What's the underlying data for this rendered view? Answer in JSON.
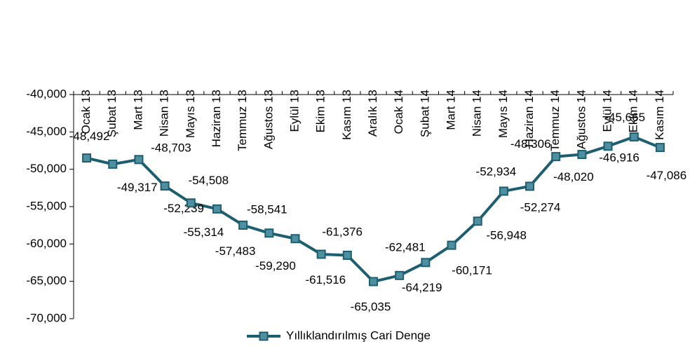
{
  "chart_data": {
    "type": "line",
    "categories": [
      "Ocak 13",
      "Şubat 13",
      "Mart 13",
      "Nisan 13",
      "Mayıs 13",
      "Haziran 13",
      "Temmuz 13",
      "Ağustos 13",
      "Eylül 13",
      "Ekim 13",
      "Kasım 13",
      "Aralık 13",
      "Ocak 14",
      "Şubat 14",
      "Mart 14",
      "Nisan 14",
      "Mayıs 14",
      "Haziran 14",
      "Temmuz 14",
      "Ağustos 14",
      "Eylül 14",
      "Ekim 14",
      "Kasım 14"
    ],
    "series": [
      {
        "name": "Yıllıklandırılmış Cari Denge",
        "color": "#1d5e70",
        "marker_color": "#4e8fa0",
        "values": [
          -48492,
          -49317,
          -48703,
          -52239,
          -54508,
          -55314,
          -57483,
          -58541,
          -59290,
          -61376,
          -61516,
          -65035,
          -64219,
          -62481,
          -60171,
          -56948,
          -52934,
          -52274,
          -48306,
          -48020,
          -46916,
          -45665,
          -47086
        ],
        "value_labels": [
          "-48,492",
          "-49,317",
          "-48,703",
          "-52,239",
          "-54,508",
          "-55,314",
          "-57,483",
          "-58,541",
          "-59,290",
          "-61,376",
          "-61,516",
          "-65,035",
          "-64,219",
          "-62,481",
          "-60,171",
          "-56,948",
          "-52,934",
          "-52,274",
          "-48,306",
          "-48,020",
          "-46,916",
          "-45,665",
          "-47,086"
        ]
      }
    ],
    "ylim": [
      -70000,
      -40000
    ],
    "yticks": [
      {
        "value": -70000,
        "label": "-70,000"
      },
      {
        "value": -65000,
        "label": "-65,000"
      },
      {
        "value": -60000,
        "label": "-60,000"
      },
      {
        "value": -55000,
        "label": "-55,000"
      },
      {
        "value": -50000,
        "label": "-50,000"
      },
      {
        "value": -45000,
        "label": "-45,000"
      },
      {
        "value": -40000,
        "label": "-40,000"
      }
    ],
    "legend": "bottom"
  }
}
